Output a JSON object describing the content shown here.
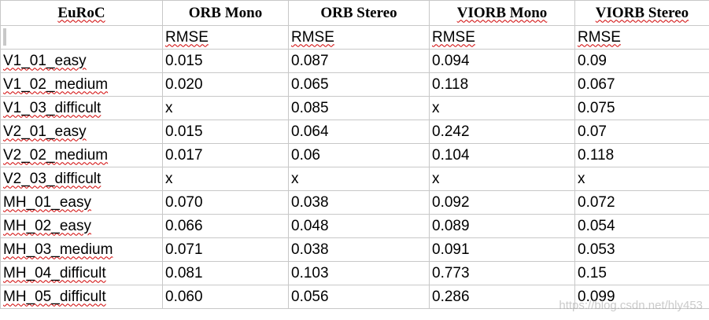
{
  "table": {
    "headers": [
      "EuRoC",
      "ORB Mono",
      "ORB Stereo",
      "VIORB Mono",
      "VIORB Stereo"
    ],
    "subheader": [
      "",
      "RMSE",
      "RMSE",
      "RMSE",
      "RMSE"
    ],
    "rows": [
      [
        "V1_01_easy",
        "0.015",
        "0.087",
        "0.094",
        "0.09"
      ],
      [
        "V1_02_medium",
        "0.020",
        "0.065",
        "0.118",
        "0.067"
      ],
      [
        "V1_03_difficult",
        "x",
        "0.085",
        "x",
        "0.075"
      ],
      [
        "V2_01_easy",
        "0.015",
        "0.064",
        "0.242",
        "0.07"
      ],
      [
        "V2_02_medium",
        "0.017",
        "0.06",
        "0.104",
        "0.118"
      ],
      [
        "V2_03_difficult",
        "x",
        "x",
        "x",
        "x"
      ],
      [
        "MH_01_easy",
        "0.070",
        "0.038",
        "0.092",
        "0.072"
      ],
      [
        "MH_02_easy",
        "0.066",
        "0.048",
        "0.089",
        "0.054"
      ],
      [
        "MH_03_medium",
        "0.071",
        "0.038",
        "0.091",
        "0.053"
      ],
      [
        "MH_04_difficult",
        "0.081",
        "0.103",
        "0.773",
        "0.15"
      ],
      [
        "MH_05_difficult",
        "0.060",
        "0.056",
        "0.286",
        "0.099"
      ]
    ]
  },
  "watermark": "https://blog.csdn.net/hly453"
}
